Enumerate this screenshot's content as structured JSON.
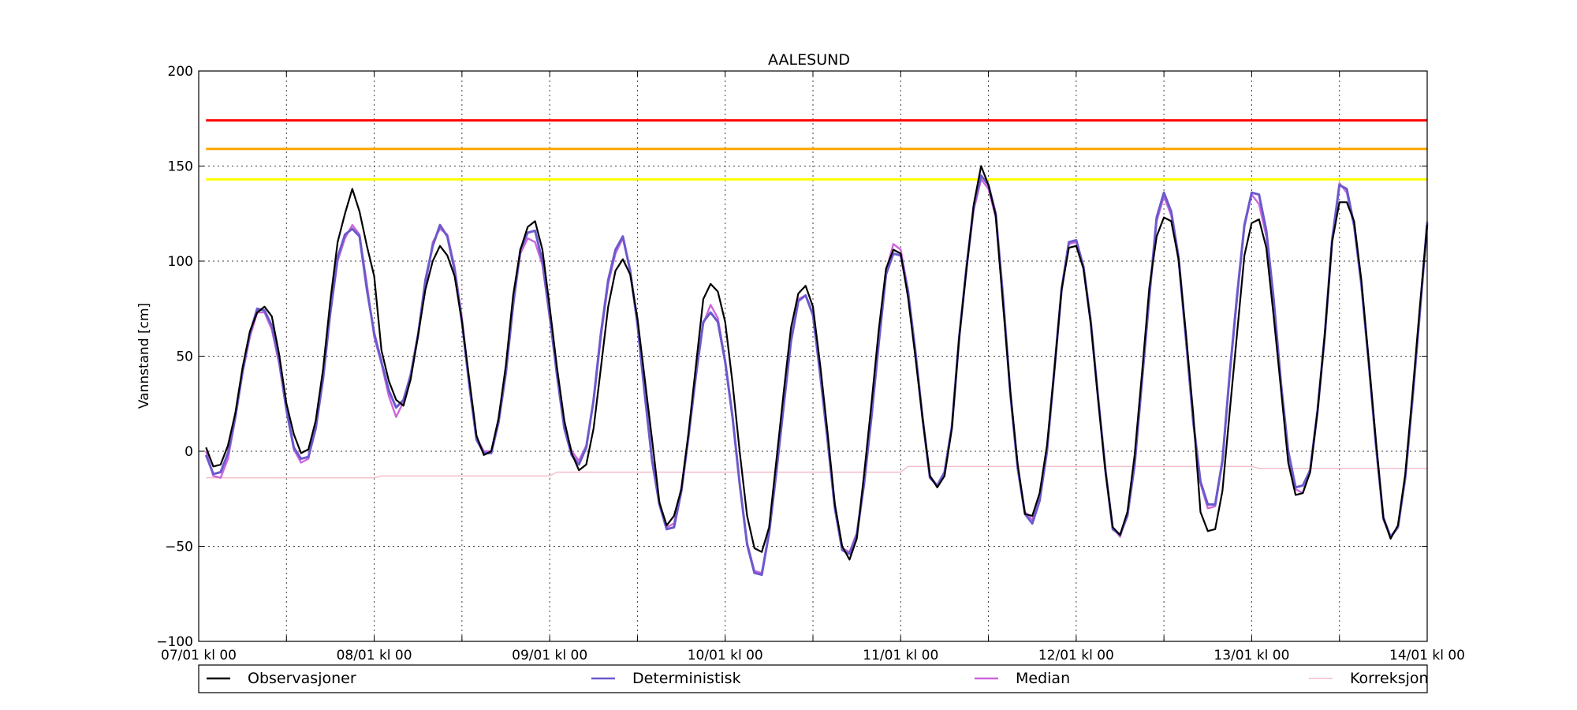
{
  "chart_data": {
    "type": "line",
    "title": "AALESUND",
    "ylabel": "Vannstand [cm]",
    "xlabel": "",
    "ylim": [
      -100,
      200
    ],
    "yticks": [
      -100,
      -50,
      0,
      50,
      100,
      150,
      200
    ],
    "xlim_hours": [
      0,
      168
    ],
    "x_unit": "hours since 07/01 kl 00",
    "x_ticks": [
      {
        "hour": 0,
        "label": "07/01 kl 00"
      },
      {
        "hour": 24,
        "label": "08/01 kl 00"
      },
      {
        "hour": 48,
        "label": "09/01 kl 00"
      },
      {
        "hour": 72,
        "label": "10/01 kl 00"
      },
      {
        "hour": 96,
        "label": "11/01 kl 00"
      },
      {
        "hour": 120,
        "label": "12/01 kl 00"
      },
      {
        "hour": 144,
        "label": "13/01 kl 00"
      },
      {
        "hour": 168,
        "label": "14/01 kl 00"
      }
    ],
    "minor_grid_hours": [
      12,
      36,
      60,
      84,
      108,
      132,
      156
    ],
    "grid": true,
    "legend_position": "bottom",
    "thresholds": [
      {
        "value": 174,
        "color": "#ff0000"
      },
      {
        "value": 159,
        "color": "#ffa500"
      },
      {
        "value": 143,
        "color": "#ffff00"
      }
    ],
    "series": [
      {
        "name": "Observasjoner",
        "color": "#000000",
        "x": [
          1,
          2,
          3,
          4,
          5,
          6,
          7,
          8,
          9,
          10,
          11,
          12,
          13,
          14,
          15,
          16,
          17,
          18,
          19,
          20,
          21,
          22,
          23,
          24,
          25,
          26,
          27,
          28,
          29,
          30,
          31,
          32,
          33,
          34,
          35,
          36,
          37,
          38,
          39,
          40,
          41,
          42,
          43,
          44,
          45,
          46,
          47,
          48,
          49,
          50,
          51,
          52,
          53,
          54,
          55,
          56,
          57,
          58,
          59,
          60,
          61,
          62,
          63,
          64,
          65,
          66,
          67,
          68,
          69,
          70,
          71,
          72,
          73,
          74,
          75,
          76,
          77,
          78,
          79,
          80,
          81,
          82,
          83,
          84,
          85,
          86,
          87,
          88,
          89,
          90,
          91,
          92,
          93,
          94,
          95,
          96,
          97,
          98,
          99,
          100,
          101,
          102,
          103,
          104,
          105,
          106,
          107,
          108,
          109,
          110,
          111,
          112,
          113,
          114,
          115,
          116,
          117,
          118,
          119,
          120,
          121,
          122,
          123,
          124,
          125,
          126,
          127,
          128,
          129,
          130,
          131,
          132,
          133,
          134,
          135,
          136,
          137,
          138,
          139,
          140,
          141,
          142,
          143,
          144,
          145,
          146,
          147,
          148,
          149,
          150,
          151,
          152,
          153,
          154,
          155,
          156,
          157,
          158,
          159,
          160,
          161,
          162,
          163,
          164,
          165,
          166,
          167,
          168
        ],
        "values": [
          2,
          -8,
          -7,
          3,
          20,
          44,
          63,
          73,
          76,
          71,
          51,
          25,
          9,
          -1,
          1,
          16,
          43,
          79,
          110,
          125,
          138,
          126,
          108,
          92,
          53,
          37,
          27,
          24,
          38,
          61,
          85,
          100,
          108,
          103,
          92,
          68,
          38,
          8,
          -2,
          0,
          17,
          45,
          82,
          106,
          118,
          121,
          106,
          76,
          44,
          16,
          -1,
          -10,
          -7,
          12,
          44,
          76,
          95,
          101,
          93,
          70,
          38,
          6,
          -27,
          -39,
          -34,
          -20,
          10,
          45,
          80,
          88,
          84,
          68,
          36,
          -1,
          -34,
          -51,
          -53,
          -40,
          -5,
          31,
          65,
          83,
          87,
          76,
          45,
          10,
          -28,
          -50,
          -57,
          -46,
          -12,
          25,
          64,
          96,
          106,
          104,
          81,
          50,
          17,
          -13,
          -19,
          -13,
          12,
          60,
          96,
          130,
          150,
          140,
          124,
          77,
          31,
          -7,
          -33,
          -34,
          -22,
          3,
          42,
          85,
          107,
          108,
          96,
          67,
          27,
          -11,
          -40,
          -44,
          -32,
          -2,
          41,
          86,
          113,
          123,
          121,
          101,
          62,
          20,
          -32,
          -42,
          -41,
          -21,
          21,
          62,
          103,
          120,
          122,
          107,
          71,
          33,
          -6,
          -23,
          -22,
          -11,
          21,
          62,
          110,
          131,
          131,
          121,
          90,
          48,
          5,
          -35,
          -46,
          -39,
          -12,
          31,
          76,
          119
        ],
        "note": ""
      },
      {
        "name": "Deterministisk",
        "color": "#6a5acd",
        "x": [
          1,
          2,
          3,
          4,
          5,
          6,
          7,
          8,
          9,
          10,
          11,
          12,
          13,
          14,
          15,
          16,
          17,
          18,
          19,
          20,
          21,
          22,
          23,
          24,
          25,
          26,
          27,
          28,
          29,
          30,
          31,
          32,
          33,
          34,
          35,
          36,
          37,
          38,
          39,
          40,
          41,
          42,
          43,
          44,
          45,
          46,
          47,
          48,
          49,
          50,
          51,
          52,
          53,
          54,
          55,
          56,
          57,
          58,
          59,
          60,
          61,
          62,
          63,
          64,
          65,
          66,
          67,
          68,
          69,
          70,
          71,
          72,
          73,
          74,
          75,
          76,
          77,
          78,
          79,
          80,
          81,
          82,
          83,
          84,
          85,
          86,
          87,
          88,
          89,
          90,
          91,
          92,
          93,
          94,
          95,
          96,
          97,
          98,
          99,
          100,
          101,
          102,
          103,
          104,
          105,
          106,
          107,
          108,
          109,
          110,
          111,
          112,
          113,
          114,
          115,
          116,
          117,
          118,
          119,
          120,
          121,
          122,
          123,
          124,
          125,
          126,
          127,
          128,
          129,
          130,
          131,
          132,
          133,
          134,
          135,
          136,
          137,
          138,
          139,
          140,
          141,
          142,
          143,
          144,
          145,
          146,
          147,
          148,
          149,
          150,
          151,
          152,
          153,
          154,
          155,
          156,
          157,
          158,
          159,
          160,
          161,
          162,
          163,
          164,
          165,
          166,
          167,
          168
        ],
        "values": [
          -2,
          -12,
          -11,
          -1,
          18,
          42,
          62,
          75,
          74,
          66,
          48,
          22,
          2,
          -4,
          -3,
          12,
          38,
          73,
          102,
          114,
          117,
          113,
          85,
          62,
          47,
          32,
          23,
          27,
          40,
          61,
          90,
          108,
          119,
          113,
          95,
          68,
          35,
          6,
          -1,
          -1,
          15,
          41,
          77,
          106,
          115,
          116,
          100,
          72,
          40,
          12,
          -2,
          -7,
          2,
          27,
          62,
          90,
          106,
          113,
          95,
          67,
          30,
          -5,
          -28,
          -41,
          -40,
          -21,
          8,
          40,
          68,
          73,
          68,
          47,
          18,
          -18,
          -49,
          -64,
          -65,
          -43,
          -11,
          24,
          58,
          79,
          82,
          72,
          40,
          6,
          -30,
          -52,
          -54,
          -44,
          -17,
          18,
          57,
          93,
          104,
          103,
          84,
          53,
          17,
          -14,
          -18,
          -11,
          13,
          60,
          97,
          129,
          145,
          140,
          125,
          81,
          30,
          -9,
          -33,
          -38,
          -26,
          0,
          42,
          85,
          110,
          111,
          97,
          68,
          28,
          -10,
          -41,
          -44,
          -34,
          -7,
          37,
          81,
          123,
          136,
          126,
          102,
          60,
          16,
          -16,
          -28,
          -28,
          -5,
          41,
          82,
          119,
          136,
          135,
          116,
          80,
          36,
          0,
          -19,
          -18,
          -10,
          21,
          61,
          111,
          140,
          138,
          119,
          88,
          47,
          3,
          -35,
          -45,
          -40,
          -14,
          28,
          73,
          120
        ],
        "note": ""
      },
      {
        "name": "Median",
        "color": "#cc66dd",
        "x": [
          1,
          2,
          3,
          4,
          5,
          6,
          7,
          8,
          9,
          10,
          11,
          12,
          13,
          14,
          15,
          16,
          17,
          18,
          19,
          20,
          21,
          22,
          23,
          24,
          25,
          26,
          27,
          28,
          29,
          30,
          31,
          32,
          33,
          34,
          35,
          36,
          37,
          38,
          39,
          40,
          41,
          42,
          43,
          44,
          45,
          46,
          47,
          48,
          49,
          50,
          51,
          52,
          53,
          54,
          55,
          56,
          57,
          58,
          59,
          60,
          61,
          62,
          63,
          64,
          65,
          66,
          67,
          68,
          69,
          70,
          71,
          72,
          73,
          74,
          75,
          76,
          77,
          78,
          79,
          80,
          81,
          82,
          83,
          84,
          85,
          86,
          87,
          88,
          89,
          90,
          91,
          92,
          93,
          94,
          95,
          96,
          97,
          98,
          99,
          100,
          101,
          102,
          103,
          104,
          105,
          106,
          107,
          108,
          109,
          110,
          111,
          112,
          113,
          114,
          115,
          116,
          117,
          118,
          119,
          120,
          121,
          122,
          123,
          124,
          125,
          126,
          127,
          128,
          129,
          130,
          131,
          132,
          133,
          134,
          135,
          136,
          137,
          138,
          139,
          140,
          141,
          142,
          143,
          144,
          145,
          146,
          147,
          148,
          149,
          150,
          151,
          152,
          153,
          154,
          155,
          156,
          157,
          158,
          159,
          160,
          161,
          162,
          163,
          164,
          165,
          166,
          167,
          168
        ],
        "values": [
          0,
          -13,
          -14,
          -4,
          17,
          41,
          60,
          73,
          73,
          64,
          46,
          21,
          1,
          -6,
          -4,
          13,
          40,
          72,
          100,
          112,
          119,
          114,
          88,
          60,
          46,
          29,
          18,
          26,
          41,
          62,
          87,
          110,
          117,
          114,
          97,
          70,
          36,
          7,
          0,
          0,
          17,
          43,
          78,
          104,
          112,
          110,
          98,
          70,
          40,
          14,
          0,
          -5,
          3,
          26,
          60,
          88,
          104,
          112,
          95,
          68,
          31,
          -4,
          -27,
          -40,
          -38,
          -19,
          9,
          40,
          67,
          77,
          70,
          48,
          19,
          -17,
          -48,
          -63,
          -64,
          -42,
          -10,
          24,
          58,
          80,
          82,
          71,
          41,
          7,
          -28,
          -51,
          -53,
          -43,
          -15,
          21,
          59,
          95,
          109,
          106,
          85,
          53,
          18,
          -13,
          -18,
          -12,
          13,
          60,
          96,
          127,
          143,
          138,
          123,
          80,
          31,
          -8,
          -32,
          -36,
          -25,
          1,
          41,
          84,
          109,
          110,
          96,
          67,
          28,
          -10,
          -40,
          -45,
          -33,
          -5,
          38,
          82,
          121,
          134,
          124,
          100,
          58,
          15,
          -17,
          -30,
          -29,
          -6,
          40,
          80,
          118,
          135,
          130,
          113,
          79,
          35,
          -1,
          -20,
          -22,
          -9,
          22,
          62,
          112,
          141,
          136,
          118,
          87,
          46,
          2,
          -36,
          -45,
          -40,
          -14,
          28,
          73,
          121
        ],
        "note": ""
      },
      {
        "name": "Korreksjon",
        "color": "#f4bcc8",
        "x": [
          1,
          24,
          25,
          48,
          49,
          96,
          97,
          120,
          121,
          144,
          145,
          168
        ],
        "values": [
          -14,
          -14,
          -13,
          -13,
          -11,
          -11,
          -8,
          -8,
          -8,
          -8,
          -9,
          -9
        ],
        "note": ""
      }
    ]
  }
}
